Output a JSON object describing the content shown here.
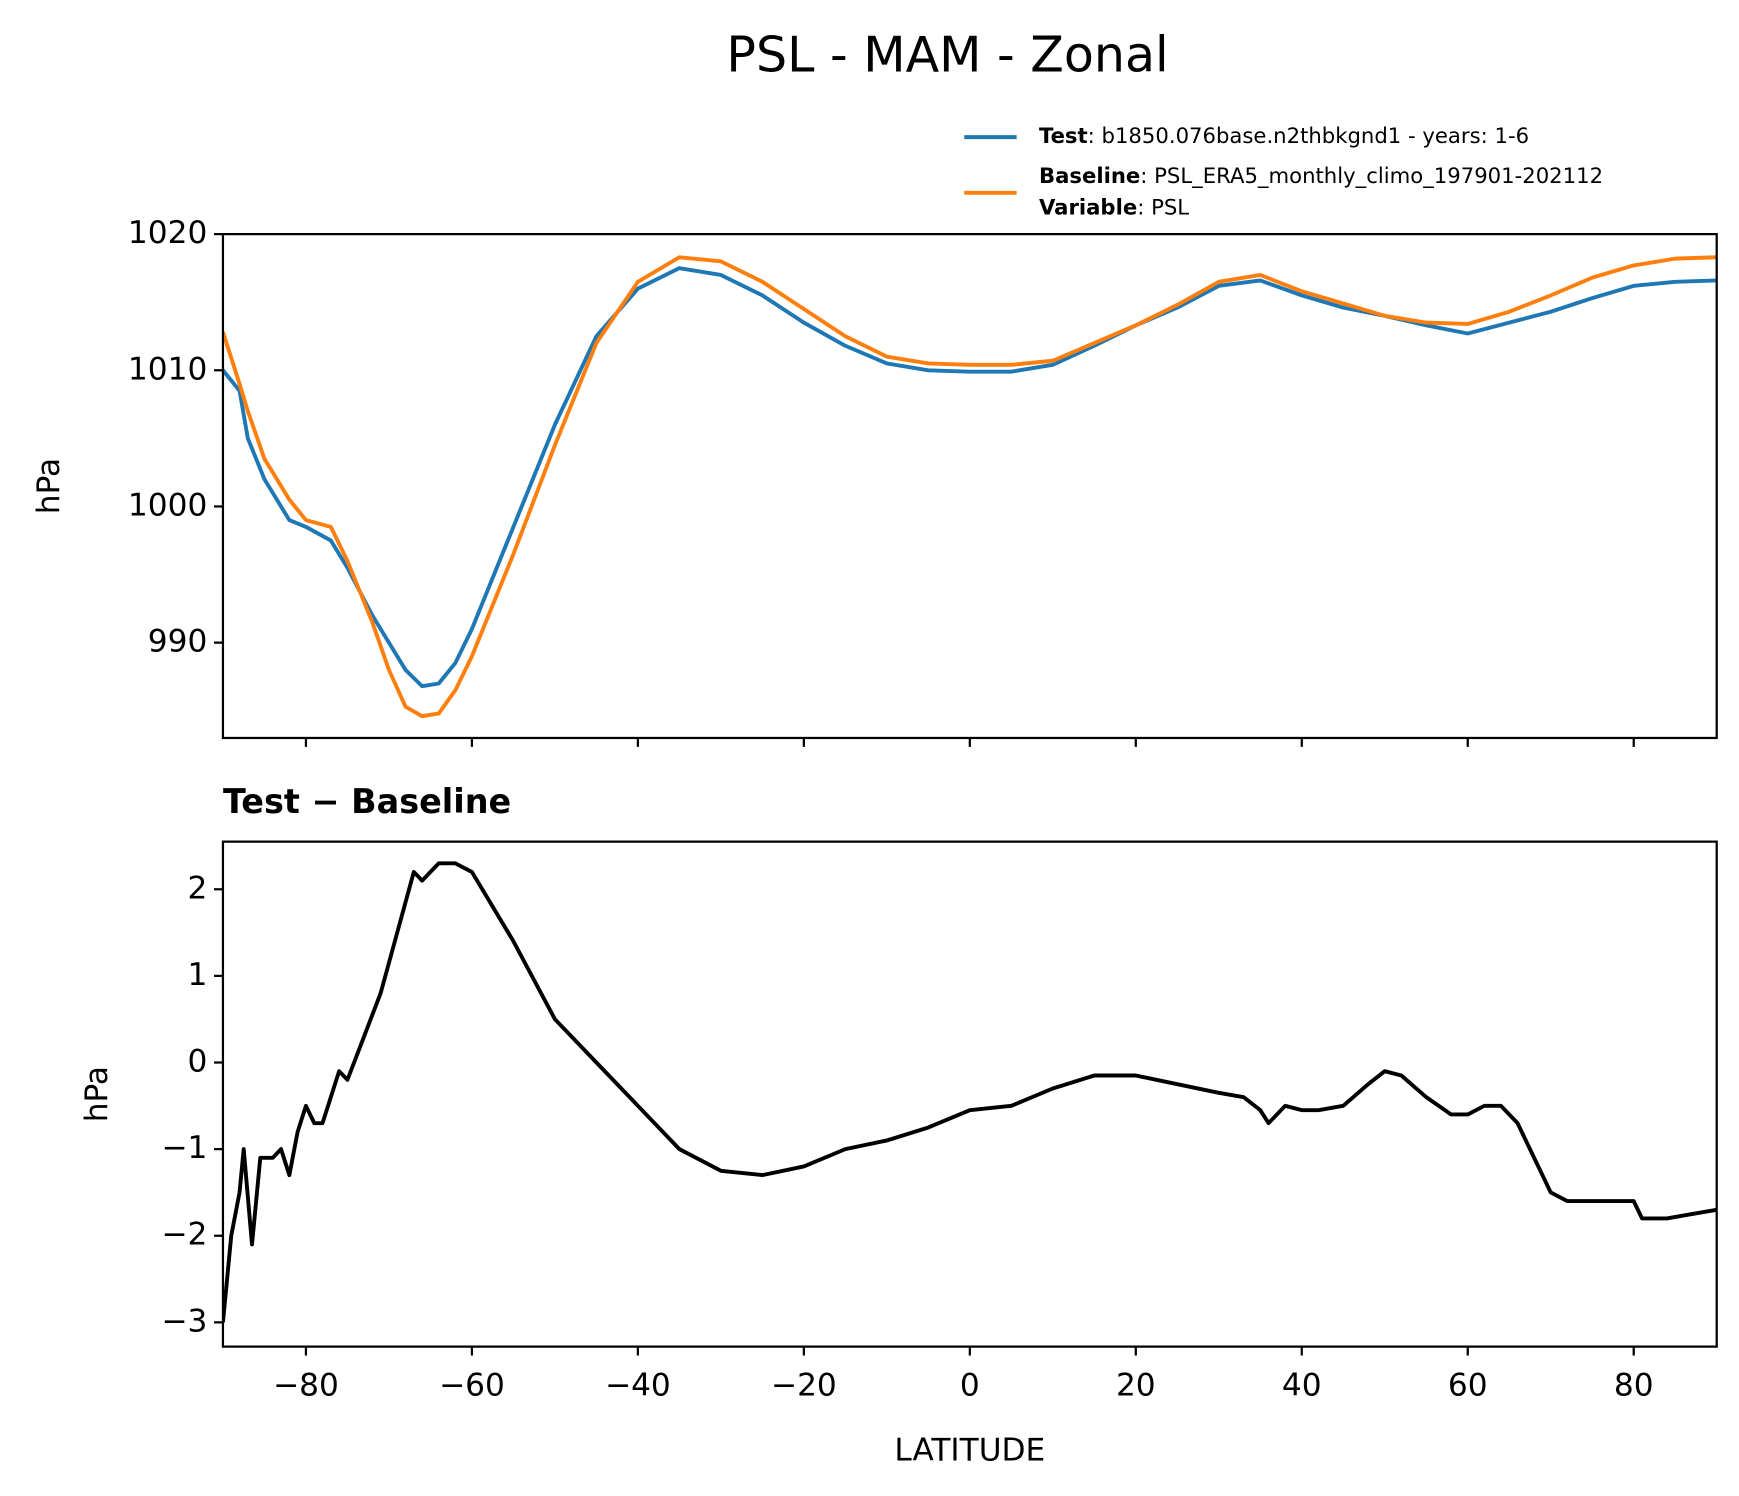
{
  "chart_data": [
    {
      "type": "line",
      "title": "PSL - MAM - Zonal",
      "ylabel": "hPa",
      "x": [
        -90,
        -88,
        -87,
        -85,
        -82,
        -80,
        -77,
        -75,
        -72,
        -70,
        -68,
        -66,
        -64,
        -62,
        -60,
        -55,
        -50,
        -45,
        -40,
        -35,
        -30,
        -25,
        -20,
        -15,
        -10,
        -5,
        0,
        5,
        10,
        15,
        20,
        25,
        30,
        35,
        40,
        45,
        50,
        55,
        60,
        65,
        70,
        75,
        80,
        85,
        90
      ],
      "series": [
        {
          "name": "Test",
          "label": ": b1850.076base.n2thbkgnd1 - years: 1-6",
          "color": "#1f77b4",
          "values": [
            1010,
            1008.5,
            1005,
            1002,
            999,
            998.5,
            997.5,
            995.5,
            992,
            990,
            988,
            986.8,
            987,
            988.5,
            991,
            998.5,
            1006,
            1012.5,
            1016,
            1017.5,
            1017,
            1015.5,
            1013.5,
            1011.8,
            1010.5,
            1010,
            1009.9,
            1009.9,
            1010.4,
            1011.8,
            1013.3,
            1014.6,
            1016.2,
            1016.6,
            1015.5,
            1014.6,
            1014,
            1013.3,
            1012.7,
            1013.5,
            1014.3,
            1015.3,
            1016.2,
            1016.5,
            1016.6
          ]
        },
        {
          "name": "Baseline",
          "label": ": PSL_ERA5_monthly_climo_197901-202112",
          "color": "#ff7f0e",
          "values": [
            1012.8,
            1009,
            1007,
            1003.5,
            1000.5,
            999,
            998.5,
            996,
            991.5,
            988,
            985.3,
            984.6,
            984.8,
            986.5,
            989,
            996.5,
            1004.5,
            1012,
            1016.5,
            1018.3,
            1018,
            1016.5,
            1014.5,
            1012.5,
            1011,
            1010.5,
            1010.4,
            1010.4,
            1010.7,
            1012,
            1013.3,
            1014.8,
            1016.5,
            1017,
            1015.8,
            1014.9,
            1014,
            1013.5,
            1013.4,
            1014.3,
            1015.5,
            1016.8,
            1017.7,
            1018.2,
            1018.3
          ]
        }
      ],
      "legend_extra": {
        "name": "Variable",
        "label": ": PSL"
      },
      "xlim": [
        -90,
        90
      ],
      "xticks": [
        -80,
        -60,
        -40,
        -20,
        0,
        20,
        40,
        60,
        80
      ],
      "ylim": [
        983,
        1020
      ],
      "yticks": [
        990,
        1000,
        1010,
        1020
      ]
    },
    {
      "type": "line",
      "title": "Test − Baseline",
      "ylabel": "hPa",
      "xlabel": "LATITUDE",
      "x": [
        -90,
        -89,
        -88,
        -87.5,
        -86.5,
        -85.5,
        -84,
        -83,
        -82,
        -81,
        -80,
        -79,
        -78,
        -76,
        -75,
        -73,
        -71,
        -69,
        -67,
        -66,
        -64,
        -62,
        -60,
        -55,
        -50,
        -45,
        -40,
        -35,
        -30,
        -25,
        -20,
        -15,
        -10,
        -5,
        0,
        5,
        10,
        15,
        20,
        25,
        30,
        33,
        35,
        36,
        38,
        40,
        42,
        45,
        48,
        50,
        52,
        55,
        58,
        60,
        62,
        64,
        66,
        68,
        70,
        72,
        75,
        78,
        80,
        81,
        84,
        87,
        90
      ],
      "series": [
        {
          "name": "Test − Baseline",
          "color": "#000000",
          "values": [
            -3,
            -2,
            -1.5,
            -1,
            -2.1,
            -1.1,
            -1.1,
            -1,
            -1.3,
            -0.8,
            -0.5,
            -0.7,
            -0.7,
            -0.1,
            -0.2,
            0.3,
            0.8,
            1.5,
            2.2,
            2.1,
            2.3,
            2.3,
            2.2,
            1.4,
            0.5,
            0,
            -0.5,
            -1,
            -1.25,
            -1.3,
            -1.2,
            -1,
            -0.9,
            -0.75,
            -0.55,
            -0.5,
            -0.3,
            -0.15,
            -0.15,
            -0.25,
            -0.35,
            -0.4,
            -0.55,
            -0.7,
            -0.5,
            -0.55,
            -0.55,
            -0.5,
            -0.25,
            -0.1,
            -0.15,
            -0.4,
            -0.6,
            -0.6,
            -0.5,
            -0.5,
            -0.7,
            -1.1,
            -1.5,
            -1.6,
            -1.6,
            -1.6,
            -1.6,
            -1.8,
            -1.8,
            -1.75,
            -1.7
          ]
        }
      ],
      "xlim": [
        -90,
        90
      ],
      "xticks": [
        {
          "value": -80,
          "label": "−80"
        },
        {
          "value": -60,
          "label": "−60"
        },
        {
          "value": -40,
          "label": "−40"
        },
        {
          "value": -20,
          "label": "−20"
        },
        0,
        20,
        40,
        60,
        80
      ],
      "ylim": [
        -3.28,
        2.55
      ],
      "yticks": [
        {
          "value": -3,
          "label": "−3"
        },
        {
          "value": -2,
          "label": "−2"
        },
        {
          "value": -1,
          "label": "−1"
        },
        0,
        1,
        2
      ]
    }
  ]
}
